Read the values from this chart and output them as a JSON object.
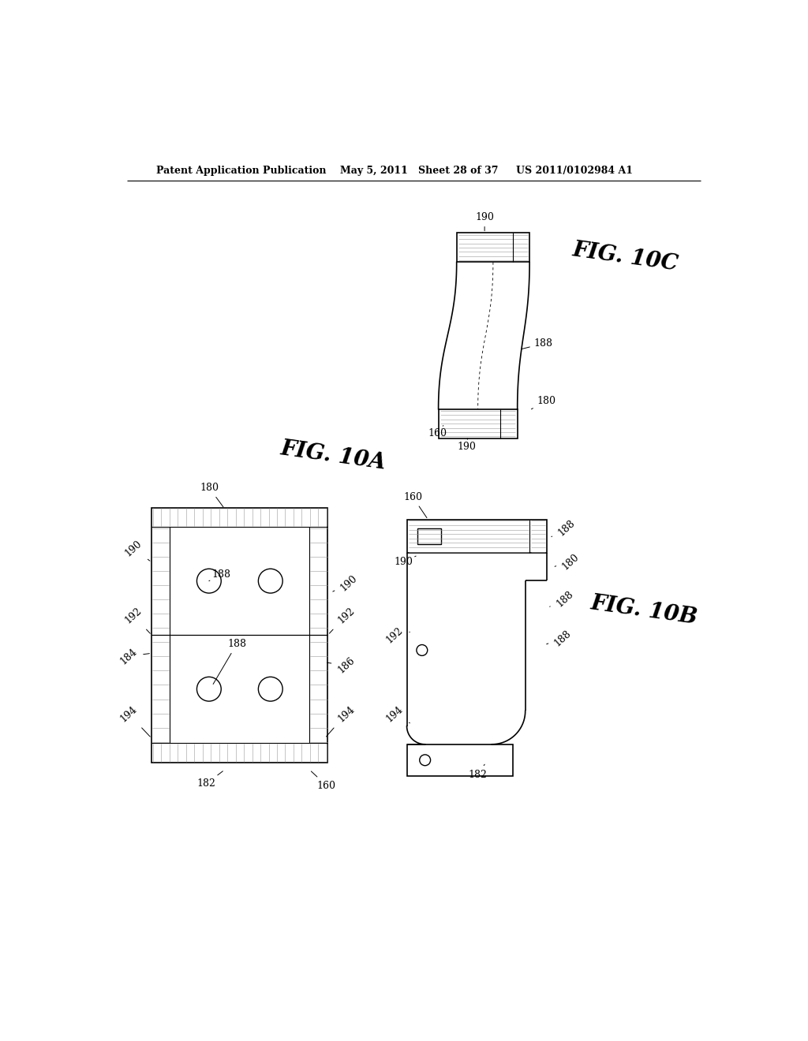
{
  "header_left": "Patent Application Publication",
  "header_mid": "May 5, 2011   Sheet 28 of 37",
  "header_right": "US 2011/0102984 A1",
  "bg_color": "#ffffff",
  "line_color": "#000000"
}
